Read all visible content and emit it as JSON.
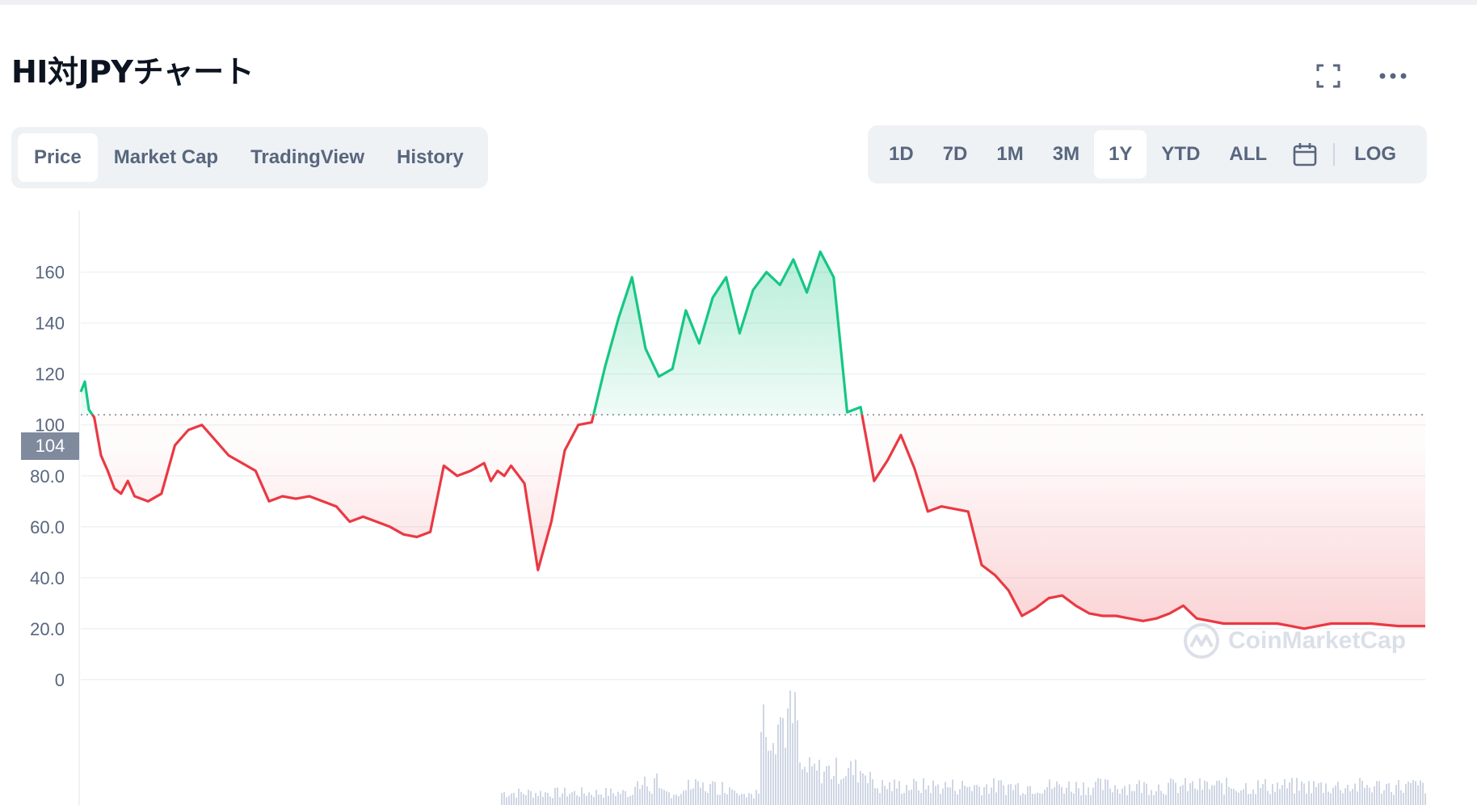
{
  "header": {
    "title": "HI対JPYチャート",
    "icons": [
      "fullscreen-icon",
      "more-icon"
    ]
  },
  "tabs": [
    {
      "label": "Price",
      "active": true
    },
    {
      "label": "Market Cap",
      "active": false
    },
    {
      "label": "TradingView",
      "active": false
    },
    {
      "label": "History",
      "active": false
    }
  ],
  "ranges": [
    {
      "label": "1D",
      "active": false
    },
    {
      "label": "7D",
      "active": false
    },
    {
      "label": "1M",
      "active": false
    },
    {
      "label": "3M",
      "active": false
    },
    {
      "label": "1Y",
      "active": true
    },
    {
      "label": "YTD",
      "active": false
    },
    {
      "label": "ALL",
      "active": false
    }
  ],
  "log_label": "LOG",
  "watermark": "CoinMarketCap",
  "colors": {
    "up": "#16c784",
    "down": "#ea3943",
    "reference": "#808a9d",
    "volume": "#cfd6e4"
  },
  "chart_data": {
    "type": "area",
    "reference_price": 104,
    "reference_label": "104",
    "y_ticks": [
      "0",
      "20.0",
      "40.0",
      "60.0",
      "80.0",
      "100",
      "120",
      "140",
      "160"
    ],
    "y_tick_values": [
      0,
      20,
      40,
      60,
      80,
      100,
      120,
      140,
      160
    ],
    "ylim": [
      -8,
      178
    ],
    "x_range": [
      0,
      100
    ],
    "grid": true,
    "series": [
      {
        "x": [
          0,
          0.3,
          0.6,
          1,
          1.5,
          2,
          2.5,
          3,
          3.5,
          4,
          5,
          6,
          7,
          8,
          9,
          10,
          11,
          12,
          13,
          14,
          15,
          16,
          17,
          18,
          19,
          20,
          21,
          22,
          23,
          24,
          25,
          26,
          27,
          28,
          29,
          30,
          30.5,
          31,
          31.5,
          32,
          33,
          34,
          35,
          36,
          37,
          38,
          39,
          40,
          41,
          42,
          43,
          44,
          45,
          46,
          47,
          48,
          49,
          50,
          51,
          52,
          53,
          54,
          55,
          56,
          57,
          58,
          59,
          60,
          61,
          62,
          63,
          64,
          65,
          66,
          67,
          68,
          69,
          70,
          71,
          72,
          73,
          74,
          75,
          76,
          77,
          78,
          79,
          80,
          81,
          82,
          83,
          84,
          85,
          86,
          87,
          88,
          89,
          90,
          91,
          92,
          93,
          94,
          95,
          96,
          97,
          98,
          99,
          100
        ],
        "y": [
          113,
          117,
          106,
          103,
          88,
          82,
          75,
          73,
          78,
          72,
          70,
          73,
          92,
          98,
          100,
          94,
          88,
          85,
          82,
          70,
          72,
          71,
          72,
          70,
          68,
          62,
          64,
          62,
          60,
          57,
          56,
          58,
          84,
          80,
          82,
          85,
          78,
          82,
          80,
          84,
          77,
          43,
          62,
          90,
          100,
          101,
          123,
          142,
          158,
          130,
          119,
          122,
          145,
          132,
          150,
          158,
          136,
          153,
          160,
          155,
          165,
          152,
          168,
          158,
          105,
          107,
          78,
          86,
          96,
          83,
          66,
          68,
          67,
          66,
          45,
          41,
          35,
          25,
          28,
          32,
          33,
          29,
          26,
          25,
          25,
          24,
          23,
          24,
          26,
          29,
          24,
          23,
          22,
          22,
          22,
          22,
          22,
          21,
          20,
          21,
          22,
          22,
          22,
          22,
          21.5,
          21,
          21,
          21
        ]
      }
    ],
    "volume_shown": true
  }
}
